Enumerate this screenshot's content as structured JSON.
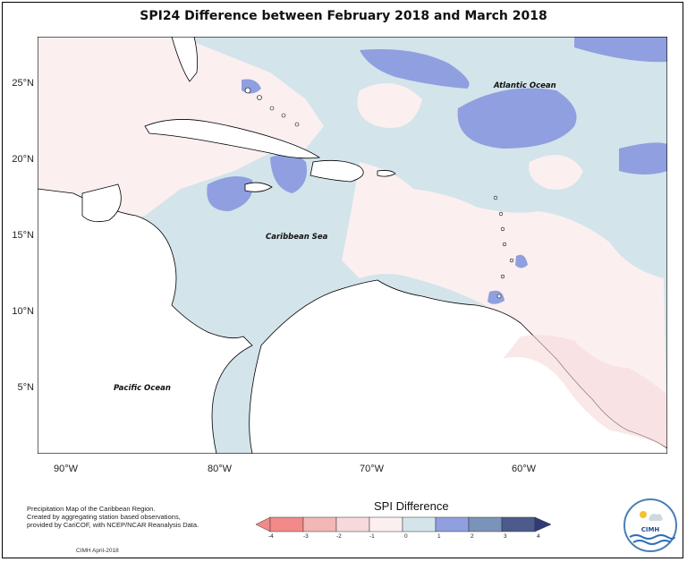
{
  "title": "SPI24 Difference between February 2018 and March 2018",
  "map": {
    "lat_ticks": [
      "25°N",
      "20°N",
      "15°N",
      "10°N",
      "5°N"
    ],
    "lon_ticks": [
      "90°W",
      "80°W",
      "70°W",
      "60°W"
    ],
    "labels": {
      "atlantic": "Atlantic Ocean",
      "caribbean": "Caribbean Sea",
      "pacific": "Pacific Ocean"
    }
  },
  "credits": {
    "line1": "Precipitation Map of the Caribbean Region.",
    "line2": "Created by aggregating station based observations,",
    "line3": "provided by CariCOF, with NCEP/NCAR Reanalysis Data."
  },
  "footer": "CIMH April-2018",
  "legend": {
    "title": "SPI Difference",
    "ticks": [
      "-4",
      "-3",
      "-2",
      "-1",
      "0",
      "1",
      "2",
      "3",
      "4"
    ],
    "colors": [
      "#f28a8a",
      "#f3b7b7",
      "#f7d9db",
      "#fbeff0",
      "#d3e4ea",
      "#8f9fe0",
      "#7a93b8",
      "#4c5a8c"
    ]
  },
  "logo": {
    "text": "CIMH"
  }
}
